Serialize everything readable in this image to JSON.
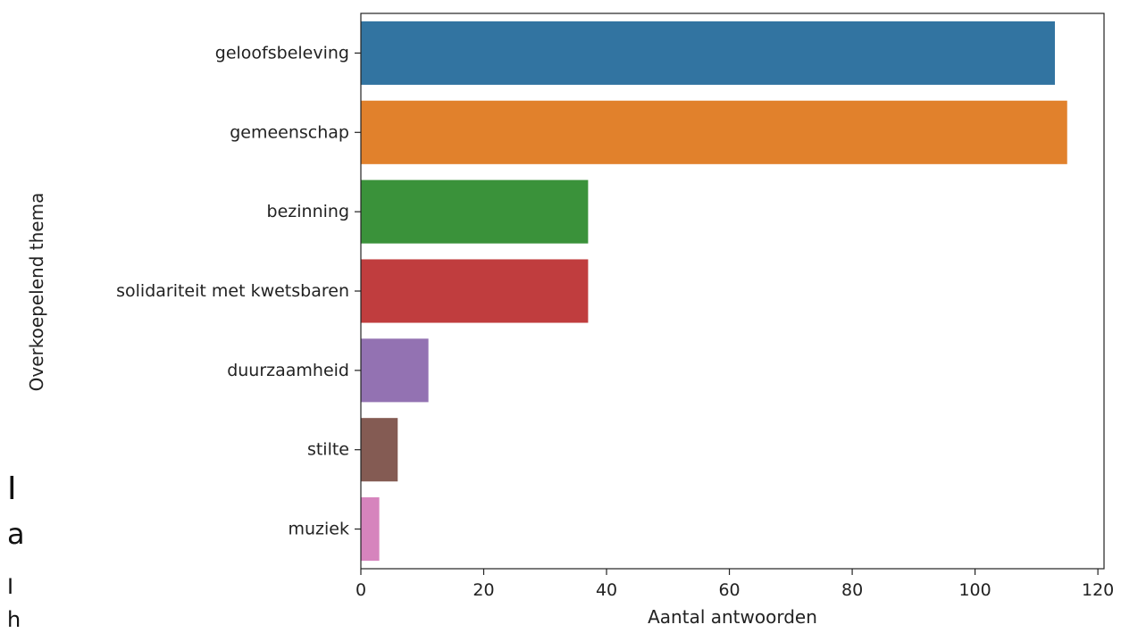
{
  "chart_data": {
    "type": "bar",
    "orientation": "horizontal",
    "categories": [
      "geloofsbeleving",
      "gemeenschap",
      "bezinning",
      "solidariteit met kwetsbaren",
      "duurzaamheid",
      "stilte",
      "muziek"
    ],
    "values": [
      113,
      115,
      37,
      37,
      11,
      6,
      3
    ],
    "colors": [
      "#3274a1",
      "#e1812c",
      "#3a923a",
      "#c03d3e",
      "#9372b2",
      "#845b53",
      "#d684bd"
    ],
    "title": "",
    "xlabel": "Aantal antwoorden",
    "ylabel": "Overkoepelend thema",
    "xlim": [
      0,
      121
    ],
    "xticks": [
      "0",
      "20",
      "40",
      "60",
      "80",
      "100",
      "120"
    ],
    "grid": false,
    "legend": false
  },
  "page_fragments": [
    "I",
    "a",
    "I",
    "h"
  ]
}
